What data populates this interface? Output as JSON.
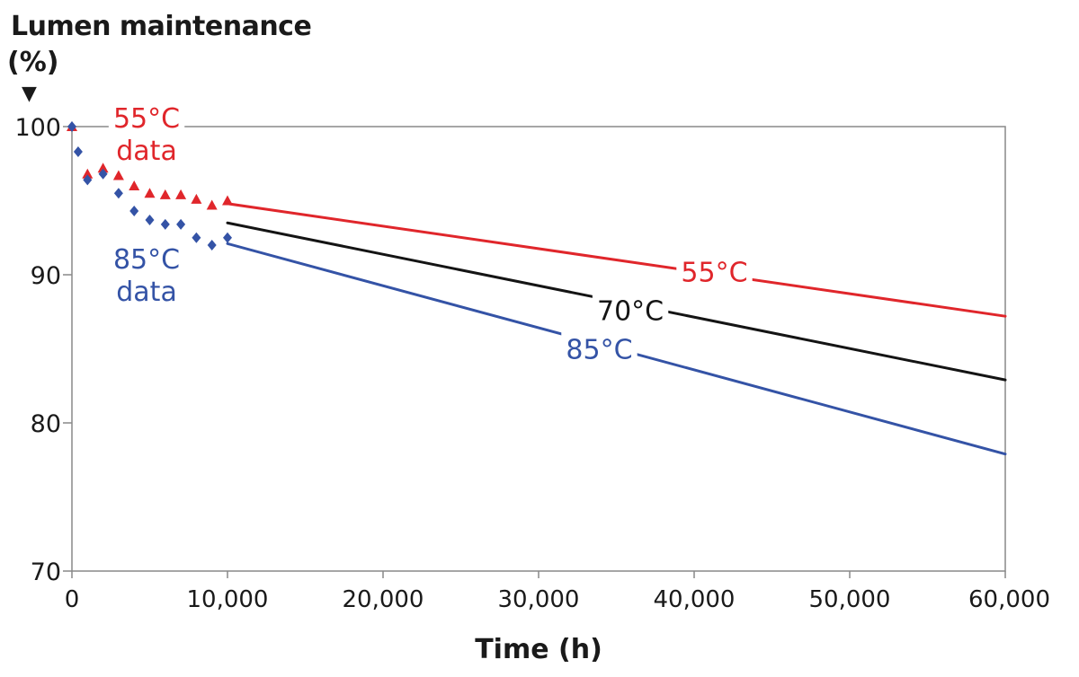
{
  "chart_data": {
    "type": "line",
    "ylabel": "Lumen maintenance",
    "ylabel_unit": "(%)",
    "ylabel_arrow": "▼",
    "xlabel": "Time (h)",
    "xlim": [
      0,
      60000
    ],
    "ylim": [
      70,
      100
    ],
    "x_ticks": [
      0,
      10000,
      20000,
      30000,
      40000,
      50000,
      60000
    ],
    "x_tick_labels": [
      "0",
      "10,000",
      "20,000",
      "30,000",
      "40,000",
      "50,000",
      "60,000"
    ],
    "y_ticks": [
      70,
      80,
      90,
      100
    ],
    "y_tick_labels": [
      "70",
      "80",
      "90",
      "100"
    ],
    "grid": false,
    "colors": {
      "red": "#e0262b",
      "black": "#141414",
      "blue": "#3453a6",
      "axis": "#888888"
    },
    "series": [
      {
        "name": "55°C",
        "kind": "line",
        "color": "red",
        "x": [
          10000,
          60000
        ],
        "y": [
          94.8,
          87.2
        ]
      },
      {
        "name": "70°C",
        "kind": "line",
        "color": "black",
        "x": [
          10000,
          60000
        ],
        "y": [
          93.5,
          82.9
        ]
      },
      {
        "name": "85°C",
        "kind": "line",
        "color": "blue",
        "x": [
          10000,
          60000
        ],
        "y": [
          92.1,
          77.9
        ]
      },
      {
        "name": "55°C data",
        "kind": "triangle",
        "color": "red",
        "x": [
          0,
          1000,
          2000,
          3000,
          4000,
          5000,
          6000,
          7000,
          8000,
          9000,
          10000
        ],
        "y": [
          100,
          96.8,
          97.2,
          96.7,
          96.0,
          95.5,
          95.4,
          95.4,
          95.1,
          94.7,
          95.0
        ]
      },
      {
        "name": "85°C data",
        "kind": "diamond",
        "color": "blue",
        "x": [
          0,
          400,
          1000,
          2000,
          3000,
          4000,
          5000,
          6000,
          7000,
          8000,
          9000,
          10000
        ],
        "y": [
          100,
          98.3,
          96.4,
          96.8,
          95.5,
          94.3,
          93.7,
          93.4,
          93.4,
          92.5,
          92.0,
          92.5
        ]
      }
    ],
    "annotations": [
      {
        "id": "55-data",
        "lines": [
          "55°C",
          "data"
        ],
        "color": "red",
        "x": 4800,
        "y": 99.5
      },
      {
        "id": "85-data",
        "lines": [
          "85°C",
          "data"
        ],
        "color": "blue",
        "x": 4800,
        "y": 90.0
      },
      {
        "id": "55-line",
        "lines": [
          "55°C"
        ],
        "color": "red",
        "x": 41300,
        "y": 90.2
      },
      {
        "id": "70-line",
        "lines": [
          "70°C"
        ],
        "color": "black",
        "x": 35900,
        "y": 87.6
      },
      {
        "id": "85-line",
        "lines": [
          "85°C"
        ],
        "color": "blue",
        "x": 33900,
        "y": 85.0
      }
    ]
  }
}
